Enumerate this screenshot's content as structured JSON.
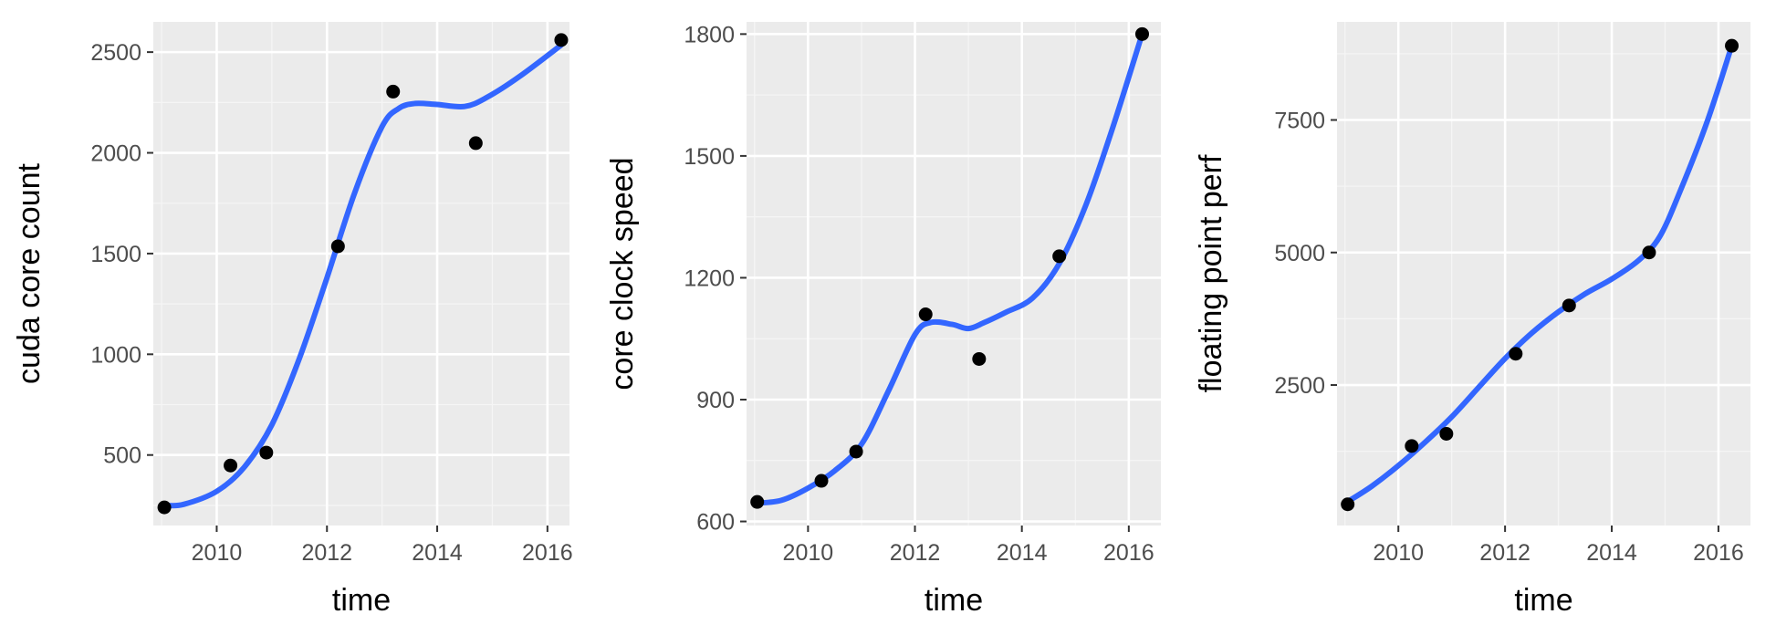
{
  "theme": {
    "panel_background": "#EBEBEB",
    "grid_major": "#FFFFFF",
    "grid_minor": "#F5F5F5",
    "point_color": "#000000",
    "smooth_color": "#3366FF",
    "tick_color": "#333333"
  },
  "chart_data": [
    {
      "type": "scatter",
      "overlay": "smooth-line",
      "xlabel": "time",
      "ylabel": "cuda core count",
      "xlim": [
        2008.85,
        2016.4
      ],
      "ylim": [
        150,
        2650
      ],
      "x_ticks": [
        2010,
        2012,
        2014,
        2016
      ],
      "y_ticks": [
        500,
        1000,
        1500,
        2000,
        2500
      ],
      "grid": true,
      "points": {
        "x": [
          2009.05,
          2010.25,
          2010.9,
          2012.2,
          2013.2,
          2014.7,
          2016.25
        ],
        "y": [
          240,
          448,
          512,
          1536,
          2304,
          2048,
          2560
        ]
      },
      "smooth": {
        "x": [
          2009.05,
          2009.4,
          2010.0,
          2010.5,
          2011.0,
          2011.5,
          2012.0,
          2012.5,
          2013.0,
          2013.3,
          2013.6,
          2014.0,
          2014.5,
          2014.9,
          2015.5,
          2016.25
        ],
        "y": [
          250,
          255,
          320,
          440,
          650,
          980,
          1380,
          1800,
          2130,
          2220,
          2245,
          2240,
          2230,
          2275,
          2380,
          2535
        ]
      }
    },
    {
      "type": "scatter",
      "overlay": "smooth-line",
      "xlabel": "time",
      "ylabel": "core clock speed",
      "xlim": [
        2008.85,
        2016.6
      ],
      "ylim": [
        590,
        1830
      ],
      "x_ticks": [
        2010,
        2012,
        2014,
        2016
      ],
      "y_ticks": [
        600,
        900,
        1200,
        1500,
        1800
      ],
      "grid": true,
      "points": {
        "x": [
          2009.05,
          2010.25,
          2010.9,
          2012.2,
          2013.2,
          2014.7,
          2016.25
        ],
        "y": [
          648,
          700,
          772,
          1110,
          1000,
          1253,
          1800
        ]
      },
      "smooth": {
        "x": [
          2009.05,
          2009.5,
          2010.0,
          2010.5,
          2011.0,
          2011.5,
          2012.0,
          2012.3,
          2012.7,
          2013.0,
          2013.3,
          2013.7,
          2014.2,
          2014.7,
          2015.2,
          2015.7,
          2016.25
        ],
        "y": [
          645,
          652,
          682,
          725,
          790,
          920,
          1060,
          1090,
          1085,
          1075,
          1090,
          1115,
          1150,
          1235,
          1380,
          1570,
          1800
        ]
      }
    },
    {
      "type": "scatter",
      "overlay": "smooth-line",
      "xlabel": "time",
      "ylabel": "floating point perf",
      "xlim": [
        2008.85,
        2016.6
      ],
      "ylim": [
        -150,
        9350
      ],
      "x_ticks": [
        2010,
        2012,
        2014,
        2016
      ],
      "y_ticks": [
        2500,
        5000,
        7500
      ],
      "grid": true,
      "points": {
        "x": [
          2009.05,
          2010.25,
          2010.9,
          2012.2,
          2013.2,
          2014.7,
          2016.25
        ],
        "y": [
          250,
          1350,
          1580,
          3090,
          4000,
          5000,
          8900
        ]
      },
      "smooth": {
        "x": [
          2009.05,
          2009.5,
          2010.0,
          2010.5,
          2011.0,
          2011.5,
          2012.0,
          2012.5,
          2013.0,
          2013.5,
          2014.0,
          2014.5,
          2014.9,
          2015.3,
          2015.8,
          2016.25
        ],
        "y": [
          300,
          590,
          980,
          1420,
          1900,
          2450,
          3000,
          3480,
          3880,
          4220,
          4500,
          4850,
          5300,
          6200,
          7500,
          8900
        ]
      }
    }
  ]
}
